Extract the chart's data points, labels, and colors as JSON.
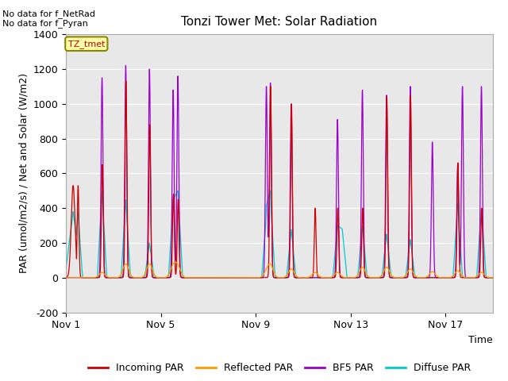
{
  "title": "Tonzi Tower Met: Solar Radiation",
  "xlabel": "Time",
  "ylabel": "PAR (umol/m2/s) / Net and Solar (W/m2)",
  "ylim": [
    -200,
    1400
  ],
  "yticks": [
    -200,
    0,
    200,
    400,
    600,
    800,
    1000,
    1200,
    1400
  ],
  "xtick_labels": [
    "Nov 1",
    "Nov 5",
    "Nov 9",
    "Nov 13",
    "Nov 17"
  ],
  "xtick_positions": [
    0,
    4,
    8,
    12,
    16
  ],
  "top_left_text": "No data for f_NetRad\nNo data for f_Pyran",
  "legend_label": "TZ_tmet",
  "background_color": "#e8e8e8",
  "colors": {
    "incoming": "#cc0000",
    "reflected": "#ff9900",
    "bf5": "#9900cc",
    "diffuse": "#00cccc"
  },
  "legend_items": [
    "Incoming PAR",
    "Reflected PAR",
    "BF5 PAR",
    "Diffuse PAR"
  ],
  "n_days": 18,
  "pts_per_day": 288
}
